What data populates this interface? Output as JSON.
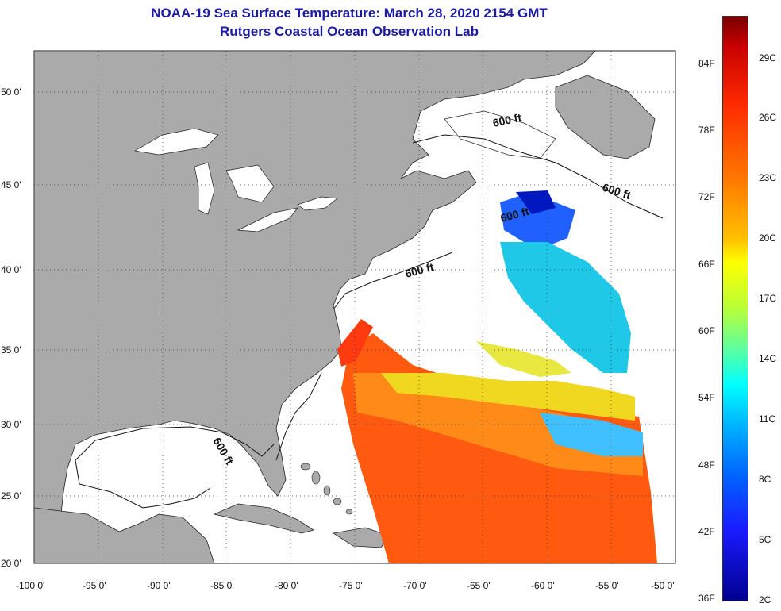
{
  "title": {
    "line1": "NOAA-19 Sea Surface Temperature:  March 28, 2020 2154 GMT",
    "line2": "Rutgers Coastal Ocean Observation Lab"
  },
  "map": {
    "lat_labels": [
      "50 0'",
      "45 0'",
      "40 0'",
      "35 0'",
      "30 0'",
      "25 0'",
      "20 0'"
    ],
    "lon_labels": [
      "-100 0'",
      "-95 0'",
      "-90 0'",
      "-85 0'",
      "-80 0'",
      "-75 0'",
      "-70 0'",
      "-65 0'",
      "-60 0'",
      "-55 0'",
      "-50 0'"
    ],
    "contour_labels": [
      "600 ft",
      "600 ft",
      "600 ft",
      "600 ft",
      "600 ft"
    ],
    "colors": {
      "land": "#aaaaaa",
      "water": "#ffffff"
    }
  },
  "colorbar": {
    "fahrenheit": [
      "84F",
      "78F",
      "72F",
      "66F",
      "60F",
      "54F",
      "48F",
      "42F",
      "36F"
    ],
    "celsius": [
      "29C",
      "26C",
      "23C",
      "20C",
      "17C",
      "14C",
      "11C",
      "8C",
      "5C",
      "2C"
    ]
  }
}
